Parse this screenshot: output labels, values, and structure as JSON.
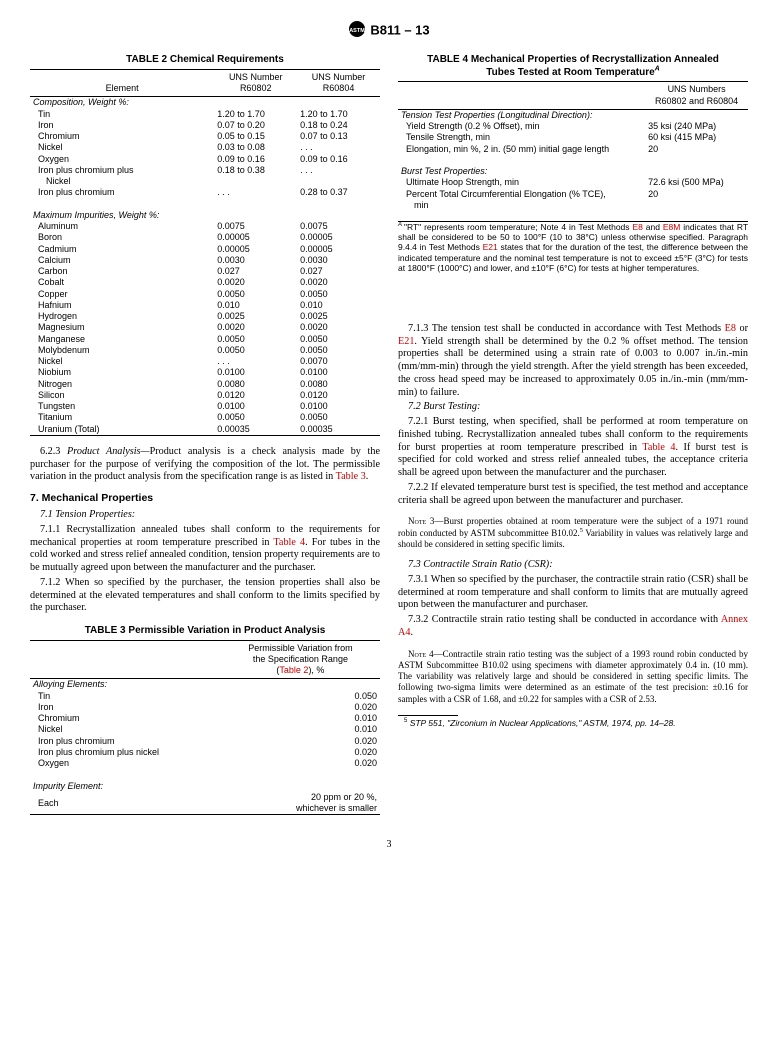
{
  "header": {
    "designation": "B811 – 13"
  },
  "page_number": "3",
  "table2": {
    "title": "TABLE 2 Chemical Requirements",
    "col_headers": [
      "Element",
      "UNS Number R60802",
      "UNS Number R60804"
    ],
    "section1": "Composition, Weight %:",
    "comp_rows": [
      {
        "el": "Tin",
        "a": "1.20 to 1.70",
        "b": "1.20 to 1.70"
      },
      {
        "el": "Iron",
        "a": "0.07 to 0.20",
        "b": "0.18 to 0.24"
      },
      {
        "el": "Chromium",
        "a": "0.05 to 0.15",
        "b": "0.07 to 0.13"
      },
      {
        "el": "Nickel",
        "a": "0.03 to 0.08",
        "b": ". . ."
      },
      {
        "el": "Oxygen",
        "a": "0.09 to 0.16",
        "b": "0.09 to 0.16"
      },
      {
        "el": "Iron plus chromium plus Nickel",
        "a": "0.18 to 0.38",
        "b": ". . ."
      },
      {
        "el": "Iron plus chromium",
        "a": ". . .",
        "b": "0.28 to 0.37"
      }
    ],
    "section2": "Maximum Impurities, Weight %:",
    "imp_rows": [
      {
        "el": "Aluminum",
        "a": "0.0075",
        "b": "0.0075"
      },
      {
        "el": "Boron",
        "a": "0.00005",
        "b": "0.00005"
      },
      {
        "el": "Cadmium",
        "a": "0.00005",
        "b": "0.00005"
      },
      {
        "el": "Calcium",
        "a": "0.0030",
        "b": "0.0030"
      },
      {
        "el": "Carbon",
        "a": "0.027",
        "b": "0.027"
      },
      {
        "el": "Cobalt",
        "a": "0.0020",
        "b": "0.0020"
      },
      {
        "el": "Copper",
        "a": "0.0050",
        "b": "0.0050"
      },
      {
        "el": "Hafnium",
        "a": "0.010",
        "b": "0.010"
      },
      {
        "el": "Hydrogen",
        "a": "0.0025",
        "b": "0.0025"
      },
      {
        "el": "Magnesium",
        "a": "0.0020",
        "b": "0.0020"
      },
      {
        "el": "Manganese",
        "a": "0.0050",
        "b": "0.0050"
      },
      {
        "el": "Molybdenum",
        "a": "0.0050",
        "b": "0.0050"
      },
      {
        "el": "Nickel",
        "a": ". . .",
        "b": "0.0070"
      },
      {
        "el": "Niobium",
        "a": "0.0100",
        "b": "0.0100"
      },
      {
        "el": "Nitrogen",
        "a": "0.0080",
        "b": "0.0080"
      },
      {
        "el": "Silicon",
        "a": "0.0120",
        "b": "0.0120"
      },
      {
        "el": "Tungsten",
        "a": "0.0100",
        "b": "0.0100"
      },
      {
        "el": "Titanium",
        "a": "0.0050",
        "b": "0.0050"
      },
      {
        "el": "Uranium (Total)",
        "a": "0.00035",
        "b": "0.00035"
      }
    ]
  },
  "table3": {
    "title": "TABLE 3 Permissible Variation in Product Analysis",
    "header_right": "Permissible Variation from the Specification Range (Table 2), %",
    "section1": "Alloying Elements:",
    "rows": [
      {
        "el": "Tin",
        "v": "0.050"
      },
      {
        "el": "Iron",
        "v": "0.020"
      },
      {
        "el": "Chromium",
        "v": "0.010"
      },
      {
        "el": "Nickel",
        "v": "0.010"
      },
      {
        "el": "Iron plus chromium",
        "v": "0.020"
      },
      {
        "el": "Iron plus chromium plus nickel",
        "v": "0.020"
      },
      {
        "el": "Oxygen",
        "v": "0.020"
      }
    ],
    "section2": "Impurity Element:",
    "imp": {
      "el": "Each",
      "v": "20 ppm or 20 %, whichever is smaller"
    }
  },
  "table4": {
    "title_l1": "TABLE 4 Mechanical Properties of Recrystallization Annealed",
    "title_l2": "Tubes Tested at Room Temperature",
    "header_right": "UNS Numbers R60802 and R60804",
    "section1": "Tension Test Properties (Longitudinal Direction):",
    "tension": [
      {
        "p": "Yield Strength (0.2 % Offset), min",
        "v": "35 ksi (240 MPa)"
      },
      {
        "p": "Tensile Strength, min",
        "v": "60 ksi (415 MPa)"
      },
      {
        "p": "Elongation, min %, 2 in. (50 mm) initial gage length",
        "v": "20"
      }
    ],
    "section2": "Burst Test Properties:",
    "burst": [
      {
        "p": "Ultimate Hoop Strength, min",
        "v": "72.6 ksi (500 MPa)"
      },
      {
        "p": "Percent Total Circumferential Elongation (% TCE), min",
        "v": "20"
      }
    ],
    "footnote_sup": "A",
    "footnote": " \"RT\" represents room temperature; Note 4 in Test Methods E8 and E8M indicates that RT shall be considered to be 50 to 100°F (10 to 38°C) unless otherwise specified. Paragraph 9.4.4 in Test Methods E21 states that for the duration of the test, the difference between the indicated temperature and the nominal test temperature is not to exceed ±5°F (3°C) for tests at 1800°F (1000°C) and lower, and ±10°F (6°C) for tests at higher temperatures.",
    "footnote_pre": "A ",
    "fn_refs": {
      "e8": "E8",
      "e8m": "E8M",
      "e21": "E21"
    }
  },
  "footnote5": "STP 551, \"Zirconium in Nuclear Applications,\" ASTM, 1974, pp. 14–28.",
  "footnote5_num": "5",
  "body": {
    "p623_label": "6.2.3 ",
    "p623_ital": "Product Analysis—",
    "p623": "Product analysis is a check analysis made by the purchaser for the purpose of verifying the composition of the lot. The permissible variation in the product analysis from the specification range is as listed in ",
    "p623_ref": "Table 3",
    "p623_end": ".",
    "h7": "7. Mechanical Properties",
    "h71": "7.1 Tension Properties:",
    "p711": "7.1.1 Recrystallization annealed tubes shall conform to the requirements for mechanical properties at room temperature prescribed in ",
    "p711_ref": "Table 4",
    "p711b": ". For tubes in the cold worked and stress relief annealed condition, tension property requirements are to be mutually agreed upon between the manufacturer and the purchaser.",
    "p712": "7.1.2 When so specified by the purchaser, the tension properties shall also be determined at the elevated temperatures and shall conform to the limits specified by the purchaser.",
    "p713a": "7.1.3 The tension test shall be conducted in accordance with Test Methods ",
    "p713_ref1": "E8",
    "p713b": " or ",
    "p713_ref2": "E21",
    "p713c": ". Yield strength shall be determined by the 0.2 % offset method. The tension properties shall be determined using a strain rate of 0.003 to 0.007 in./in.-min (mm/mm-min) through the yield strength. After the yield strength has been exceeded, the cross head speed may be increased to approximately 0.05 in./in.-min (mm/mm-min) to failure.",
    "h72": "7.2 Burst Testing:",
    "p721a": "7.2.1 Burst testing, when specified, shall be performed at room temperature on finished tubing. Recrystallization annealed tubes shall conform to the requirements for burst properties at room temperature prescribed in ",
    "p721_ref": "Table 4",
    "p721b": ". If burst test is specified for cold worked and stress relief annealed tubes, the acceptance criteria shall be agreed upon between the manufacturer and the purchaser.",
    "p722": "7.2.2 If elevated temperature burst test is specified, the test method and acceptance criteria shall be agreed upon between the manufacturer and purchaser.",
    "note3_label": "Note 3—",
    "note3": "Burst properties obtained at room temperature were the subject of a 1971 round robin conducted by ASTM subcommittee B10.02.",
    "note3_sup": "5",
    "note3b": " Variability in values was relatively large and should be considered in setting specific limits.",
    "h73": "7.3 Contractile Strain Ratio (CSR):",
    "p731": "7.3.1 When so specified by the purchaser, the contractile strain ratio (CSR) shall be determined at room temperature and shall conform to limits that are mutually agreed upon between the manufacturer and purchaser.",
    "p732a": "7.3.2 Contractile strain ratio testing shall be conducted in accordance with ",
    "p732_ref": "Annex A4",
    "p732b": ".",
    "note4_label": "Note 4—",
    "note4": "Contractile strain ratio testing was the subject of a 1993 round robin conducted by ASTM Subcommittee B10.02 using specimens with diameter approximately 0.4 in. (10 mm). The variability was relatively large and should be considered in setting specific limits. The following two-sigma limits were determined as an estimate of the test precision: ±0.16 for samples with a CSR of 1.68, and ±0.22 for samples with a CSR of 2.53."
  }
}
